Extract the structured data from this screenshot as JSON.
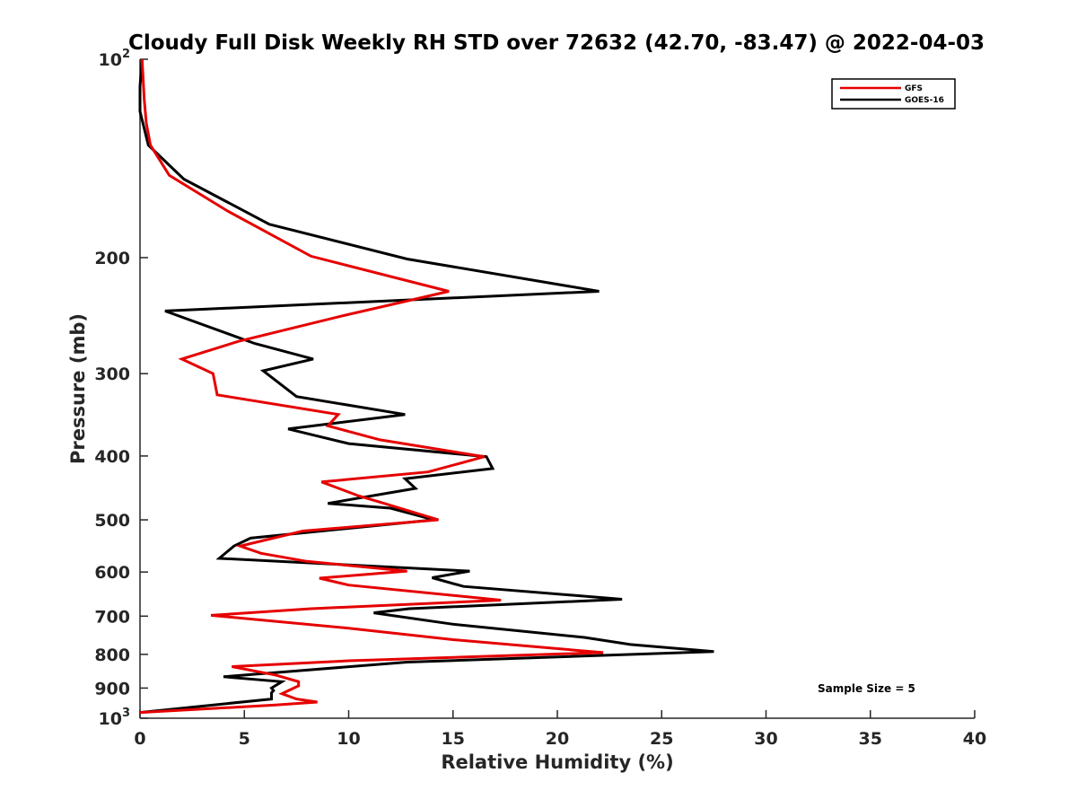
{
  "chart_data": {
    "type": "line",
    "title": "Cloudy Full Disk Weekly RH STD over 72632 (42.70, -83.47) @ 2022-04-03",
    "xlabel": "Relative Humidity (%)",
    "ylabel": "Pressure (mb)",
    "xlim": [
      0,
      40
    ],
    "ylim": [
      100,
      1000
    ],
    "y_scale": "log",
    "y_reversed": true,
    "x_ticks": [
      "0",
      "5",
      "10",
      "15",
      "20",
      "25",
      "30",
      "35",
      "40"
    ],
    "y_ticks": [
      {
        "value": 100,
        "label": "10",
        "exp": "2"
      },
      {
        "value": 200,
        "label": "200"
      },
      {
        "value": 300,
        "label": "300"
      },
      {
        "value": 400,
        "label": "400"
      },
      {
        "value": 500,
        "label": "500"
      },
      {
        "value": 600,
        "label": "600"
      },
      {
        "value": 700,
        "label": "700"
      },
      {
        "value": 800,
        "label": "800"
      },
      {
        "value": 900,
        "label": "900"
      },
      {
        "value": 1000,
        "label": "10",
        "exp": "3"
      }
    ],
    "grid": false,
    "legend_position": "top-right",
    "annotation": "Sample Size = 5",
    "series": [
      {
        "name": "GFS",
        "color": "#e60000",
        "points": [
          [
            0.1,
            100
          ],
          [
            0.2,
            115
          ],
          [
            0.3,
            125
          ],
          [
            0.5,
            135
          ],
          [
            1.4,
            150
          ],
          [
            4.2,
            170
          ],
          [
            8.2,
            199
          ],
          [
            14.8,
            225
          ],
          [
            9.5,
            246
          ],
          [
            4.7,
            268
          ],
          [
            2.0,
            285
          ],
          [
            3.5,
            300
          ],
          [
            3.7,
            323
          ],
          [
            9.5,
            346
          ],
          [
            9.0,
            360
          ],
          [
            11.5,
            378
          ],
          [
            16.5,
            401
          ],
          [
            13.8,
            423
          ],
          [
            8.7,
            438
          ],
          [
            10.5,
            460
          ],
          [
            11.5,
            470
          ],
          [
            14.3,
            500
          ],
          [
            7.8,
            520
          ],
          [
            4.8,
            548
          ],
          [
            5.8,
            562
          ],
          [
            8.0,
            578
          ],
          [
            12.8,
            598
          ],
          [
            8.6,
            613
          ],
          [
            10.0,
            628
          ],
          [
            17.3,
            662
          ],
          [
            8.2,
            682
          ],
          [
            3.4,
            698
          ],
          [
            10.0,
            730
          ],
          [
            15.0,
            760
          ],
          [
            22.2,
            795
          ],
          [
            10.0,
            818
          ],
          [
            4.4,
            835
          ],
          [
            6.5,
            860
          ],
          [
            7.6,
            880
          ],
          [
            7.6,
            893
          ],
          [
            6.8,
            918
          ],
          [
            7.5,
            935
          ],
          [
            8.5,
            945
          ],
          [
            6.5,
            955
          ],
          [
            0.0,
            980
          ]
        ]
      },
      {
        "name": "GOES-16",
        "color": "#000000",
        "points": [
          [
            0.1,
            100
          ],
          [
            0.0,
            110
          ],
          [
            0.0,
            120
          ],
          [
            0.4,
            135
          ],
          [
            2.1,
            152
          ],
          [
            6.2,
            178
          ],
          [
            12.8,
            201
          ],
          [
            22.0,
            225
          ],
          [
            1.2,
            241
          ],
          [
            5.5,
            270
          ],
          [
            8.3,
            285
          ],
          [
            5.9,
            297
          ],
          [
            7.5,
            325
          ],
          [
            12.7,
            346
          ],
          [
            7.1,
            364
          ],
          [
            10.0,
            383
          ],
          [
            16.6,
            401
          ],
          [
            16.9,
            418
          ],
          [
            12.7,
            433
          ],
          [
            13.2,
            448
          ],
          [
            9.0,
            472
          ],
          [
            12.0,
            480
          ],
          [
            14.1,
            500
          ],
          [
            5.3,
            533
          ],
          [
            4.5,
            548
          ],
          [
            3.8,
            572
          ],
          [
            15.8,
            598
          ],
          [
            14.0,
            612
          ],
          [
            15.5,
            631
          ],
          [
            23.1,
            660
          ],
          [
            12.9,
            682
          ],
          [
            11.2,
            692
          ],
          [
            15.0,
            720
          ],
          [
            21.3,
            754
          ],
          [
            23.5,
            773
          ],
          [
            27.5,
            792
          ],
          [
            12.8,
            822
          ],
          [
            7.6,
            847
          ],
          [
            4.0,
            865
          ],
          [
            6.8,
            880
          ],
          [
            6.3,
            900
          ],
          [
            6.4,
            908
          ],
          [
            6.3,
            915
          ],
          [
            6.3,
            935
          ],
          [
            0.0,
            980
          ]
        ]
      }
    ]
  }
}
